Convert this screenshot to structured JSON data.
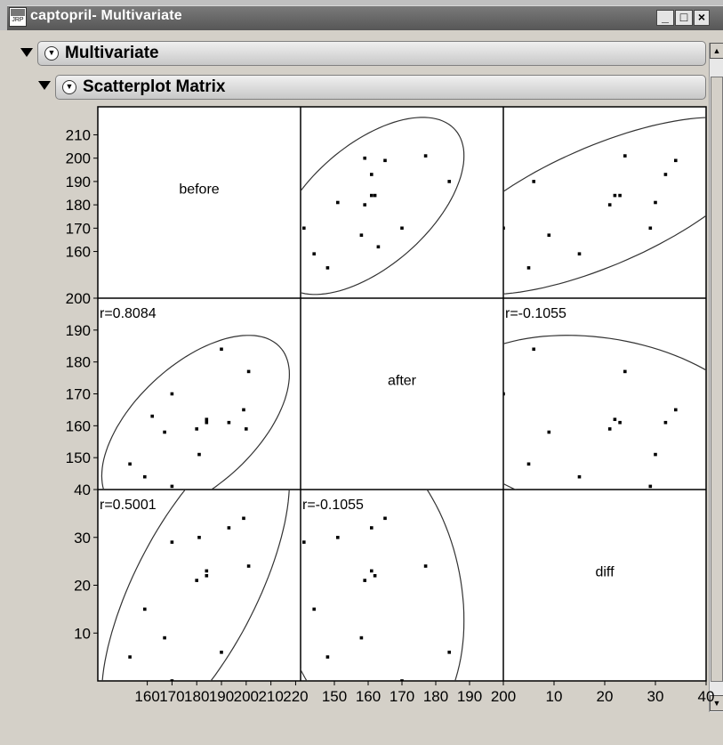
{
  "window": {
    "title": "captopril- Multivariate",
    "minimize": "_",
    "maximize": "□",
    "close": "×",
    "icon_text": "JRP"
  },
  "outline": {
    "multivariate": "Multivariate",
    "scatterplot_matrix": "Scatterplot Matrix"
  },
  "chart_data": {
    "type": "scatter",
    "title": "Scatterplot Matrix",
    "variables": [
      "before",
      "after",
      "diff"
    ],
    "ranges": {
      "before": [
        140,
        222
      ],
      "after": [
        140,
        200
      ],
      "diff": [
        0,
        40
      ]
    },
    "ticks": {
      "before_y": [
        "160",
        "170",
        "180",
        "190",
        "200",
        "210"
      ],
      "after_y": [
        "150",
        "160",
        "170",
        "180",
        "190",
        "200"
      ],
      "diff_y": [
        "10",
        "20",
        "30",
        "40"
      ],
      "before_x": [
        "160",
        "170",
        "180",
        "190",
        "200",
        "210",
        "220"
      ],
      "after_x": [
        "150",
        "160",
        "170",
        "180",
        "190",
        "200"
      ],
      "diff_x": [
        "10",
        "20",
        "30",
        "40"
      ]
    },
    "correlations": {
      "before_after": "r=0.8084",
      "before_diff": "r=0.5001",
      "after_diff": "r=-0.1055"
    },
    "points": [
      {
        "before": 181,
        "after": 151
      },
      {
        "before": 170,
        "after": 170
      },
      {
        "before": 201,
        "after": 177
      },
      {
        "before": 199,
        "after": 165
      },
      {
        "before": 180,
        "after": 159
      },
      {
        "before": 184,
        "after": 162
      },
      {
        "before": 200,
        "after": 159
      },
      {
        "before": 153,
        "after": 148
      },
      {
        "before": 159,
        "after": 144
      },
      {
        "before": 167,
        "after": 158
      },
      {
        "before": 184,
        "after": 161
      },
      {
        "before": 193,
        "after": 161
      },
      {
        "before": 190,
        "after": 184
      },
      {
        "before": 170,
        "after": 141
      },
      {
        "before": 162,
        "after": 163
      }
    ]
  }
}
